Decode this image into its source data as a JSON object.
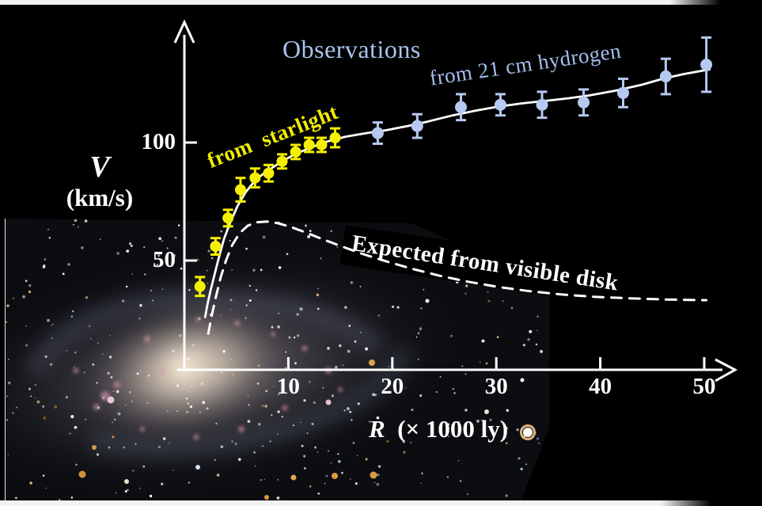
{
  "figure": {
    "background": "#000000",
    "labels": {
      "observations": "Observations",
      "hydrogen": "from 21 cm hydrogen",
      "starlight": "from  starlight",
      "expected": "Expected from visible disk"
    },
    "colors": {
      "light_blue_text": "#a3bfee",
      "blue_points": "#b6c9f1",
      "yellow": "#f0ee00",
      "white": "#ffffff"
    }
  },
  "chart_data": {
    "type": "scatter",
    "xlabel": "R (× 1000 ly)",
    "ylabel": "V (km/s)",
    "xlabel_symbol": "R",
    "xlabel_units": "  (× 1000 ly)",
    "ylabel_symbol": "V",
    "ylabel_units": "(km/s)",
    "xlim": [
      0,
      53
    ],
    "ylim": [
      0,
      148
    ],
    "xticks": [
      10,
      20,
      30,
      40,
      50
    ],
    "yticks": [
      50,
      100
    ],
    "grid": false,
    "legend_position": "inline-annotations",
    "series": [
      {
        "name": "from starlight",
        "color": "#f5f000",
        "marker": "circle-with-error-bars",
        "points": [
          [
            1.5,
            39,
            4
          ],
          [
            3.0,
            56,
            3.5
          ],
          [
            4.2,
            68,
            3.5
          ],
          [
            5.4,
            80,
            5
          ],
          [
            6.8,
            85,
            4
          ],
          [
            8.1,
            87,
            3.5
          ],
          [
            9.4,
            92,
            3
          ],
          [
            10.7,
            96,
            3
          ],
          [
            12.0,
            99,
            3
          ],
          [
            13.2,
            99,
            3
          ],
          [
            14.5,
            102,
            4
          ]
        ]
      },
      {
        "name": "from 21 cm hydrogen",
        "color": "#b6c9f1",
        "marker": "circle-with-error-bars",
        "points": [
          [
            18.6,
            104,
            4.5
          ],
          [
            22.4,
            107,
            5
          ],
          [
            26.6,
            115,
            5.5
          ],
          [
            30.4,
            116,
            4.5
          ],
          [
            34.4,
            116,
            5.5
          ],
          [
            38.4,
            117,
            5.5
          ],
          [
            42.2,
            121,
            6
          ],
          [
            46.3,
            128,
            7.5
          ],
          [
            50.2,
            133,
            11.5
          ]
        ]
      }
    ],
    "curves": [
      {
        "name": "observed rotation curve fit",
        "style": "solid",
        "color": "#ffffff",
        "r": [
          2.0,
          2.2,
          2.5,
          2.9,
          3.3,
          3.8,
          4.4,
          5.1,
          5.9,
          6.9,
          8.0,
          9.2,
          10.6,
          12.2,
          13.8,
          15.5,
          17.5,
          19.5,
          21.5,
          23.5,
          25.8,
          28.0,
          30.3,
          32.5,
          35.0,
          37.0,
          39.0,
          41.5,
          44.0,
          46.0,
          48.0,
          50.5
        ],
        "v": [
          26,
          31,
          37,
          44,
          51,
          59,
          66,
          73,
          79,
          84.5,
          88,
          91.5,
          95,
          98,
          100.5,
          102.5,
          104,
          105.3,
          107,
          109,
          111.5,
          113.5,
          115.3,
          116.6,
          117.8,
          118.8,
          120,
          122,
          124.5,
          127,
          129,
          131
        ]
      },
      {
        "name": "Expected from visible disk",
        "style": "dashed",
        "color": "#ffffff",
        "r": [
          2.3,
          2.6,
          3.0,
          3.5,
          4.0,
          4.6,
          5.3,
          6.1,
          7.0,
          8.0,
          9.0,
          10.2,
          11.6,
          13.2,
          15.0,
          17.0,
          19.3,
          21.8,
          24.5,
          27.3,
          30.2,
          33.2,
          36.3,
          39.5,
          42.8,
          46.3,
          50.2
        ],
        "v": [
          19,
          26,
          34,
          43,
          50,
          56.5,
          61.5,
          64.8,
          66.2,
          66.5,
          65.8,
          64.3,
          62,
          59.2,
          56.2,
          53,
          49.8,
          46.6,
          43.6,
          41,
          38.8,
          37,
          35.6,
          34.6,
          34,
          33.5,
          33.2
        ]
      }
    ]
  }
}
